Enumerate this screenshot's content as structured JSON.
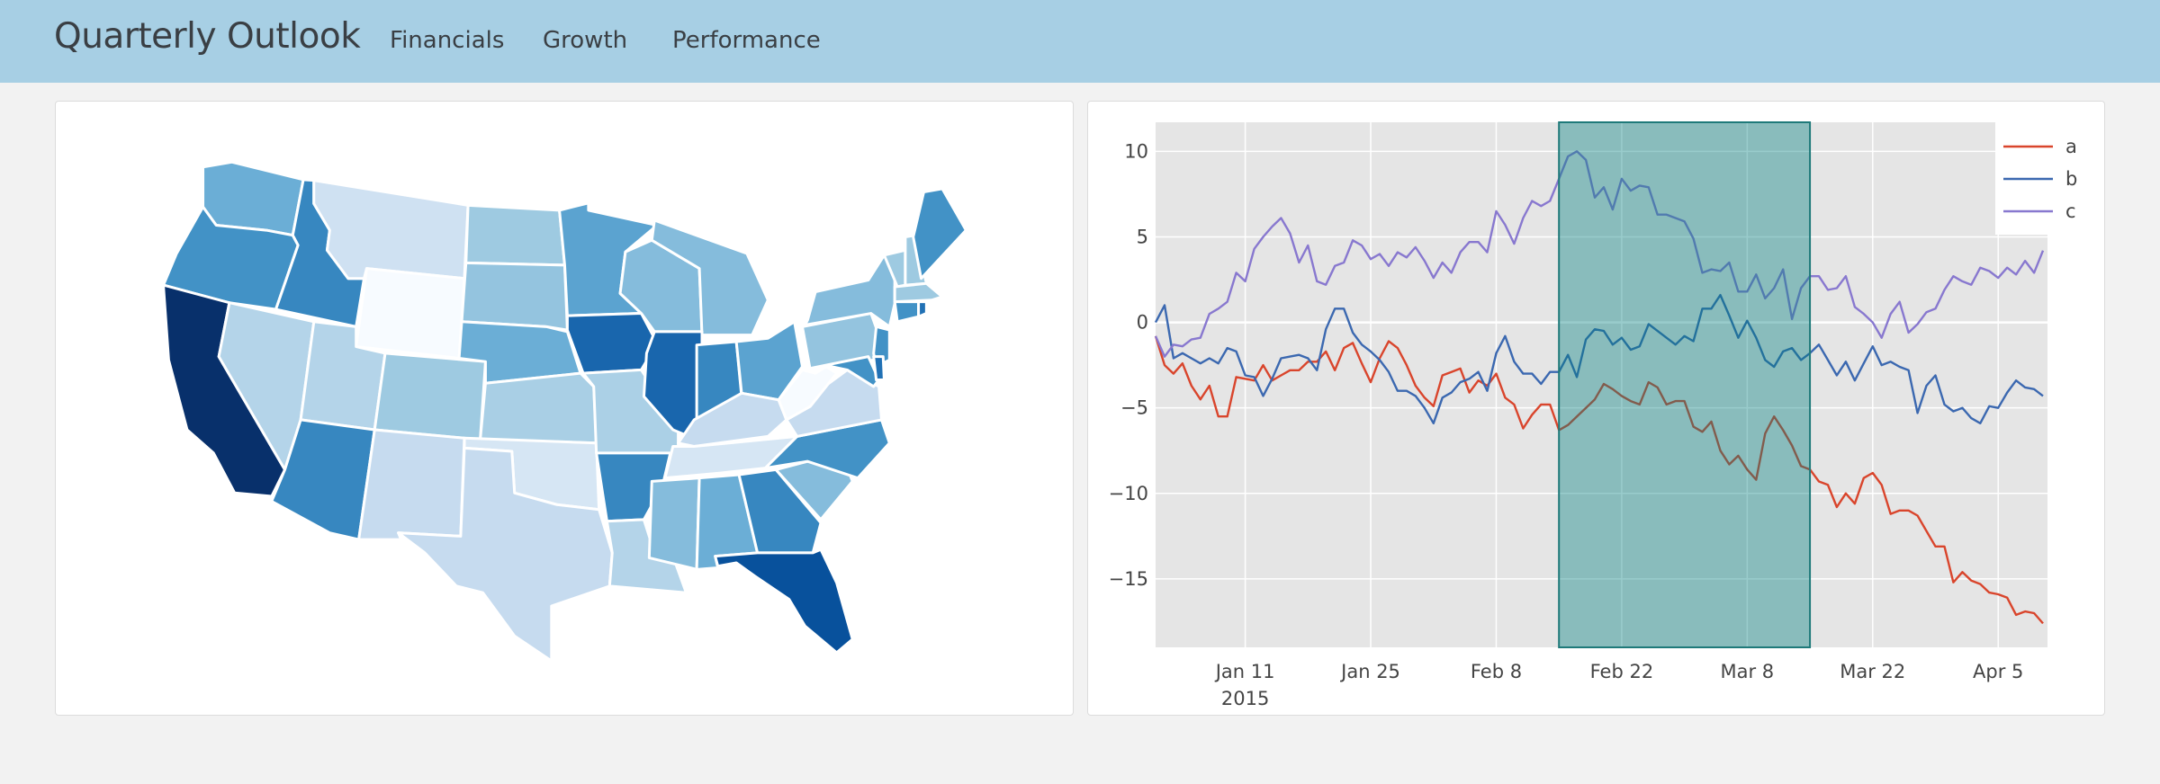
{
  "navbar": {
    "brand": "Quarterly Outlook",
    "links": [
      "Financials",
      "Growth",
      "Performance"
    ],
    "background": "#a7cfe4"
  },
  "map": {
    "colorscale": "Blues",
    "states": [
      {
        "id": "WA",
        "color": "#6baed6"
      },
      {
        "id": "OR",
        "color": "#4292c6"
      },
      {
        "id": "CA",
        "color": "#08306b"
      },
      {
        "id": "NV",
        "color": "#b4d4e9"
      },
      {
        "id": "ID",
        "color": "#3787c0"
      },
      {
        "id": "MT",
        "color": "#cfe1f2"
      },
      {
        "id": "WY",
        "color": "#f7fbff"
      },
      {
        "id": "UT",
        "color": "#b4d4e9"
      },
      {
        "id": "CO",
        "color": "#9ecae1"
      },
      {
        "id": "AZ",
        "color": "#3787c0"
      },
      {
        "id": "NM",
        "color": "#c6dbef"
      },
      {
        "id": "ND",
        "color": "#9ecae1"
      },
      {
        "id": "SD",
        "color": "#94c4df"
      },
      {
        "id": "NE",
        "color": "#6baed6"
      },
      {
        "id": "KS",
        "color": "#a9cfe5"
      },
      {
        "id": "OK",
        "color": "#d6e6f4"
      },
      {
        "id": "TX",
        "color": "#c6dbef"
      },
      {
        "id": "MN",
        "color": "#5ba3d0"
      },
      {
        "id": "IA",
        "color": "#1966ad"
      },
      {
        "id": "MO",
        "color": "#abd0e6"
      },
      {
        "id": "AR",
        "color": "#3787c0"
      },
      {
        "id": "LA",
        "color": "#b4d4e9"
      },
      {
        "id": "WI",
        "color": "#85bcdc"
      },
      {
        "id": "MI",
        "color": "#85bcdc"
      },
      {
        "id": "IL",
        "color": "#1966ad"
      },
      {
        "id": "IN",
        "color": "#3787c0"
      },
      {
        "id": "OH",
        "color": "#5ba3d0"
      },
      {
        "id": "KY",
        "color": "#c6dbef"
      },
      {
        "id": "TN",
        "color": "#d6e6f4"
      },
      {
        "id": "MS",
        "color": "#85bcdc"
      },
      {
        "id": "AL",
        "color": "#6baed6"
      },
      {
        "id": "GA",
        "color": "#3787c0"
      },
      {
        "id": "FL",
        "color": "#08519c"
      },
      {
        "id": "SC",
        "color": "#85bcdc"
      },
      {
        "id": "NC",
        "color": "#4292c6"
      },
      {
        "id": "VA",
        "color": "#c6dbef"
      },
      {
        "id": "WV",
        "color": "#f7fbff"
      },
      {
        "id": "PA",
        "color": "#94c4df"
      },
      {
        "id": "NY",
        "color": "#85bcdc"
      },
      {
        "id": "NJ",
        "color": "#4292c6"
      },
      {
        "id": "MD",
        "color": "#4292c6"
      },
      {
        "id": "DE",
        "color": "#2171b5"
      },
      {
        "id": "VT",
        "color": "#9ecae1"
      },
      {
        "id": "NH",
        "color": "#9ecae1"
      },
      {
        "id": "ME",
        "color": "#4292c6"
      },
      {
        "id": "MA",
        "color": "#9ecae1"
      },
      {
        "id": "CT",
        "color": "#4292c6"
      },
      {
        "id": "RI",
        "color": "#2171b5"
      }
    ]
  },
  "chart_data": {
    "type": "line",
    "x": [
      "2015-01-01",
      "2015-01-02",
      "2015-01-03",
      "2015-01-04",
      "2015-01-05",
      "2015-01-06",
      "2015-01-07",
      "2015-01-08",
      "2015-01-09",
      "2015-01-10",
      "2015-01-11",
      "2015-01-12",
      "2015-01-13",
      "2015-01-14",
      "2015-01-15",
      "2015-01-16",
      "2015-01-17",
      "2015-01-18",
      "2015-01-19",
      "2015-01-20",
      "2015-01-21",
      "2015-01-22",
      "2015-01-23",
      "2015-01-24",
      "2015-01-25",
      "2015-01-26",
      "2015-01-27",
      "2015-01-28",
      "2015-01-29",
      "2015-01-30",
      "2015-01-31",
      "2015-02-01",
      "2015-02-02",
      "2015-02-03",
      "2015-02-04",
      "2015-02-05",
      "2015-02-06",
      "2015-02-07",
      "2015-02-08",
      "2015-02-09",
      "2015-02-10",
      "2015-02-11",
      "2015-02-12",
      "2015-02-13",
      "2015-02-14",
      "2015-02-15",
      "2015-02-16",
      "2015-02-17",
      "2015-02-18",
      "2015-02-19",
      "2015-02-20",
      "2015-02-21",
      "2015-02-22",
      "2015-02-23",
      "2015-02-24",
      "2015-02-25",
      "2015-02-26",
      "2015-02-27",
      "2015-02-28",
      "2015-03-01",
      "2015-03-02",
      "2015-03-03",
      "2015-03-04",
      "2015-03-05",
      "2015-03-06",
      "2015-03-07",
      "2015-03-08",
      "2015-03-09",
      "2015-03-10",
      "2015-03-11",
      "2015-03-12",
      "2015-03-13",
      "2015-03-14",
      "2015-03-15",
      "2015-03-16",
      "2015-03-17",
      "2015-03-18",
      "2015-03-19",
      "2015-03-20",
      "2015-03-21",
      "2015-03-22",
      "2015-03-23",
      "2015-03-24",
      "2015-03-25",
      "2015-03-26",
      "2015-03-27",
      "2015-03-28",
      "2015-03-29",
      "2015-03-30",
      "2015-03-31",
      "2015-04-01",
      "2015-04-02",
      "2015-04-03",
      "2015-04-04",
      "2015-04-05",
      "2015-04-06",
      "2015-04-07",
      "2015-04-08",
      "2015-04-09",
      "2015-04-10"
    ],
    "series": [
      {
        "name": "a",
        "color": "#d9452c",
        "values": [
          -0.8,
          -2.5,
          -3.0,
          -2.4,
          -3.7,
          -4.5,
          -3.7,
          -5.5,
          -5.5,
          -3.2,
          -3.3,
          -3.4,
          -2.5,
          -3.4,
          -3.1,
          -2.8,
          -2.8,
          -2.3,
          -2.3,
          -1.7,
          -2.8,
          -1.5,
          -1.2,
          -2.4,
          -3.5,
          -2.1,
          -1.1,
          -1.5,
          -2.5,
          -3.7,
          -4.4,
          -4.9,
          -3.1,
          -2.9,
          -2.7,
          -4.1,
          -3.4,
          -3.7,
          -3.0,
          -4.4,
          -4.8,
          -6.2,
          -5.4,
          -4.8,
          -4.8,
          -6.3,
          -6.0,
          -5.5,
          -5.0,
          -4.5,
          -3.6,
          -3.9,
          -4.3,
          -4.6,
          -4.8,
          -3.5,
          -3.8,
          -4.8,
          -4.6,
          -4.6,
          -6.1,
          -6.4,
          -5.8,
          -7.5,
          -8.3,
          -7.8,
          -8.6,
          -9.2,
          -6.5,
          -5.5,
          -6.3,
          -7.2,
          -8.4,
          -8.6,
          -9.3,
          -9.5,
          -10.8,
          -10.0,
          -10.6,
          -9.1,
          -8.8,
          -9.5,
          -11.2,
          -11.0,
          -11.0,
          -11.3,
          -12.2,
          -13.1,
          -13.1,
          -15.2,
          -14.6,
          -15.1,
          -15.3,
          -15.8,
          -15.9,
          -16.1,
          -17.1,
          -16.9,
          -17.0,
          -17.6
        ]
      },
      {
        "name": "b",
        "color": "#3b68b0",
        "values": [
          0.0,
          1.0,
          -2.1,
          -1.8,
          -2.1,
          -2.4,
          -2.1,
          -2.4,
          -1.5,
          -1.7,
          -3.1,
          -3.2,
          -4.3,
          -3.3,
          -2.1,
          -2.0,
          -1.9,
          -2.1,
          -2.8,
          -0.4,
          0.8,
          0.8,
          -0.6,
          -1.3,
          -1.7,
          -2.2,
          -2.9,
          -4.0,
          -4.0,
          -4.3,
          -5.0,
          -5.9,
          -4.4,
          -4.1,
          -3.5,
          -3.3,
          -2.9,
          -4.0,
          -1.8,
          -0.8,
          -2.3,
          -3.0,
          -3.0,
          -3.6,
          -2.9,
          -2.9,
          -1.9,
          -3.2,
          -1.0,
          -0.4,
          -0.5,
          -1.3,
          -0.9,
          -1.6,
          -1.4,
          -0.1,
          -0.5,
          -0.9,
          -1.3,
          -0.8,
          -1.1,
          0.8,
          0.8,
          1.6,
          0.4,
          -0.9,
          0.1,
          -0.9,
          -2.2,
          -2.6,
          -1.7,
          -1.5,
          -2.2,
          -1.8,
          -1.3,
          -2.2,
          -3.1,
          -2.3,
          -3.4,
          -2.4,
          -1.4,
          -2.5,
          -2.3,
          -2.6,
          -2.8,
          -5.3,
          -3.7,
          -3.1,
          -4.8,
          -5.2,
          -5.0,
          -5.6,
          -5.9,
          -4.9,
          -5.0,
          -4.1,
          -3.4,
          -3.8,
          -3.9,
          -4.3
        ]
      },
      {
        "name": "c",
        "color": "#8878cf",
        "values": [
          -0.8,
          -2.0,
          -1.3,
          -1.4,
          -1.0,
          -0.9,
          0.5,
          0.8,
          1.2,
          2.9,
          2.4,
          4.3,
          5.0,
          5.6,
          6.1,
          5.2,
          3.5,
          4.5,
          2.4,
          2.2,
          3.3,
          3.5,
          4.8,
          4.5,
          3.7,
          4.0,
          3.3,
          4.1,
          3.8,
          4.4,
          3.6,
          2.6,
          3.5,
          2.9,
          4.1,
          4.7,
          4.7,
          4.1,
          6.5,
          5.7,
          4.6,
          6.1,
          7.1,
          6.8,
          7.1,
          8.4,
          9.7,
          10.0,
          9.5,
          7.3,
          7.9,
          6.6,
          8.4,
          7.7,
          8.0,
          7.9,
          6.3,
          6.3,
          6.1,
          5.9,
          4.9,
          2.9,
          3.1,
          3.0,
          3.5,
          1.8,
          1.8,
          2.8,
          1.4,
          2.0,
          3.1,
          0.2,
          2.0,
          2.7,
          2.7,
          1.9,
          2.0,
          2.7,
          0.9,
          0.5,
          0.0,
          -0.9,
          0.5,
          1.2,
          -0.6,
          -0.1,
          0.6,
          0.8,
          1.9,
          2.7,
          2.4,
          2.2,
          3.2,
          3.0,
          2.6,
          3.2,
          2.8,
          3.6,
          2.9,
          4.2
        ]
      }
    ],
    "xrange": [
      "2015-01-01",
      "2015-04-10"
    ],
    "ylim": [
      -19,
      11.7
    ],
    "x_ticks": [
      {
        "date": "2015-01-11",
        "label": "Jan 11",
        "sublabel": "2015"
      },
      {
        "date": "2015-01-25",
        "label": "Jan 25"
      },
      {
        "date": "2015-02-08",
        "label": "Feb 8"
      },
      {
        "date": "2015-02-22",
        "label": "Feb 22"
      },
      {
        "date": "2015-03-08",
        "label": "Mar 8"
      },
      {
        "date": "2015-03-22",
        "label": "Mar 22"
      },
      {
        "date": "2015-04-05",
        "label": "Apr 5"
      }
    ],
    "y_ticks": [
      {
        "value": 10,
        "label": "10"
      },
      {
        "value": 5,
        "label": "5"
      },
      {
        "value": 0,
        "label": "0"
      },
      {
        "value": -5,
        "label": "−5"
      },
      {
        "value": -10,
        "label": "−10"
      },
      {
        "value": -15,
        "label": "−15"
      }
    ],
    "grid": true,
    "legend": "top-right",
    "plot_background": "#e5e5e5",
    "selection": {
      "x0": "2015-02-15",
      "x1": "2015-03-15",
      "fill": "#008080",
      "opacity": 0.4,
      "stroke": "#1f7a7a"
    }
  }
}
